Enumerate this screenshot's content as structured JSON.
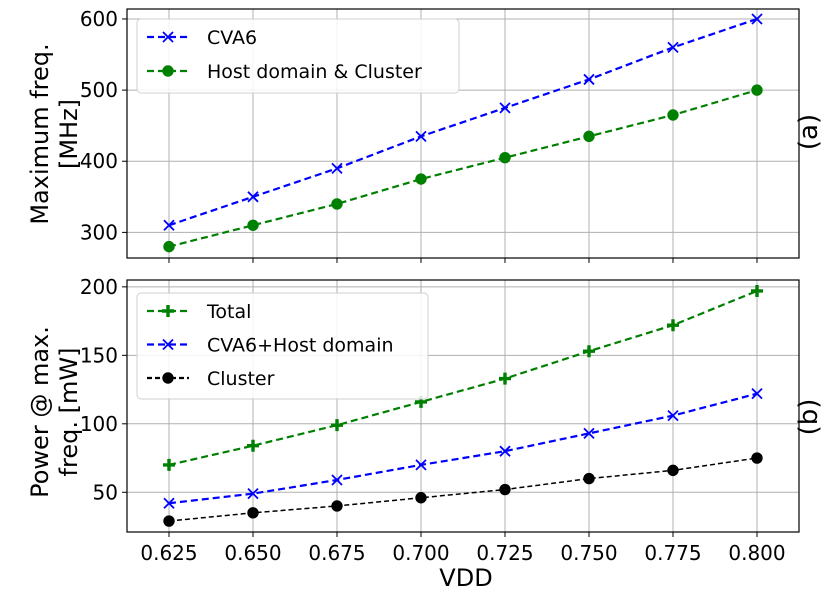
{
  "chart_data": [
    {
      "type": "line",
      "panel_label": "(a)",
      "ylabel_lines": [
        "Maximum freq.",
        "[MHz]"
      ],
      "x": [
        0.625,
        0.65,
        0.675,
        0.7,
        0.725,
        0.75,
        0.775,
        0.8
      ],
      "x_tick_labels": [
        "0.625",
        "0.650",
        "0.675",
        "0.700",
        "0.725",
        "0.750",
        "0.775",
        "0.800"
      ],
      "xlim": [
        0.6125,
        0.8125
      ],
      "ylim": [
        264,
        614
      ],
      "y_ticks": [
        300,
        400,
        500,
        600
      ],
      "y_tick_labels": [
        "300",
        "400",
        "500",
        "600"
      ],
      "grid": true,
      "legend_position": "top-left",
      "series": [
        {
          "name": "CVA6",
          "color": "#0000ff",
          "marker": "x",
          "values": [
            310,
            350,
            390,
            435,
            475,
            515,
            560,
            600
          ]
        },
        {
          "name": "Host domain & Cluster",
          "color": "#008000",
          "marker": "circle",
          "values": [
            280,
            310,
            340,
            375,
            405,
            435,
            465,
            500
          ]
        }
      ]
    },
    {
      "type": "line",
      "panel_label": "(b)",
      "ylabel_lines": [
        "Power @ max.",
        "freq. [mW]"
      ],
      "x": [
        0.625,
        0.65,
        0.675,
        0.7,
        0.725,
        0.75,
        0.775,
        0.8
      ],
      "x_tick_labels": [
        "0.625",
        "0.650",
        "0.675",
        "0.700",
        "0.725",
        "0.750",
        "0.775",
        "0.800"
      ],
      "xlabel": "VDD",
      "xlim": [
        0.6125,
        0.8125
      ],
      "ylim": [
        21,
        205
      ],
      "y_ticks": [
        50,
        100,
        150,
        200
      ],
      "y_tick_labels": [
        "50",
        "100",
        "150",
        "200"
      ],
      "grid": true,
      "legend_position": "top-left",
      "series": [
        {
          "name": "Total",
          "color": "#008000",
          "marker": "plus",
          "values": [
            70,
            84,
            99,
            116,
            133,
            153,
            172,
            197
          ]
        },
        {
          "name": "CVA6+Host domain",
          "color": "#0000ff",
          "marker": "x",
          "values": [
            42,
            49,
            59,
            70,
            80,
            93,
            106,
            122
          ]
        },
        {
          "name": "Cluster",
          "color": "#000000",
          "marker": "circle",
          "values": [
            29,
            35,
            40,
            46,
            52,
            60,
            66,
            75
          ]
        }
      ]
    }
  ]
}
